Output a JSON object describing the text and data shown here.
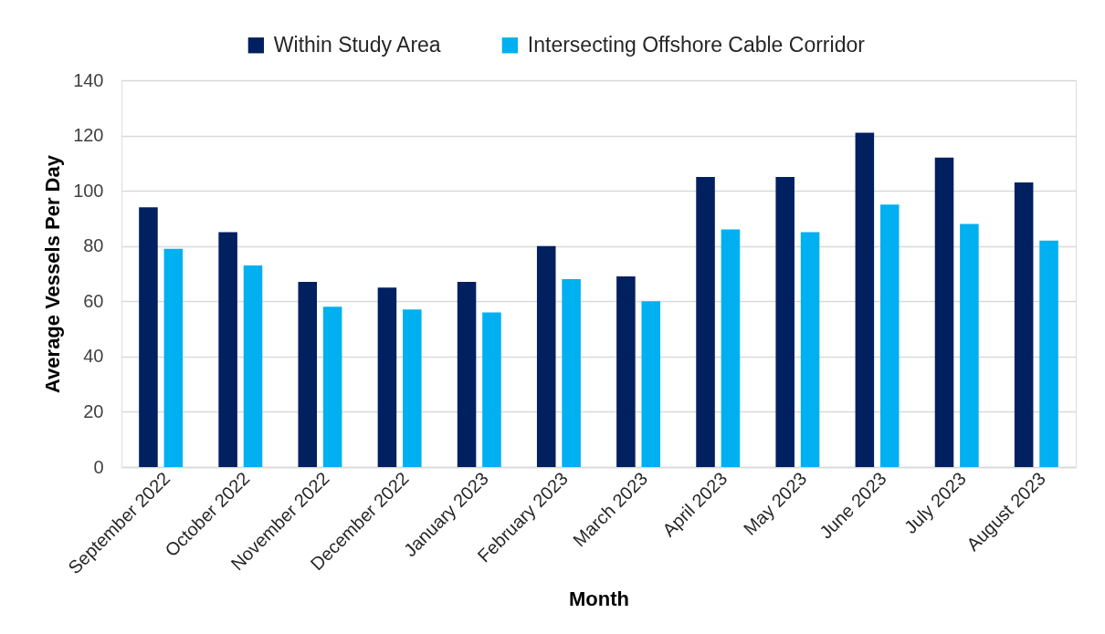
{
  "chart_data": {
    "type": "bar",
    "xlabel": "Month",
    "ylabel": "Average Vessels Per Day",
    "categories": [
      "September 2022",
      "October 2022",
      "November 2022",
      "December 2022",
      "January 2023",
      "February 2023",
      "March 2023",
      "April 2023",
      "May 2023",
      "June 2023",
      "July 2023",
      "August 2023"
    ],
    "series": [
      {
        "name": "Within Study Area",
        "color": "#002060",
        "values": [
          94,
          85,
          67,
          65,
          67,
          80,
          69,
          105,
          105,
          121,
          112,
          103
        ]
      },
      {
        "name": "Intersecting Offshore Cable Corridor",
        "color": "#00b0f0",
        "values": [
          79,
          73,
          58,
          57,
          56,
          68,
          60,
          86,
          85,
          95,
          88,
          82
        ]
      }
    ],
    "ylim": [
      0,
      140
    ],
    "yticks": [
      0,
      20,
      40,
      60,
      80,
      100,
      120,
      140
    ],
    "grid": "y",
    "legend": "top"
  }
}
